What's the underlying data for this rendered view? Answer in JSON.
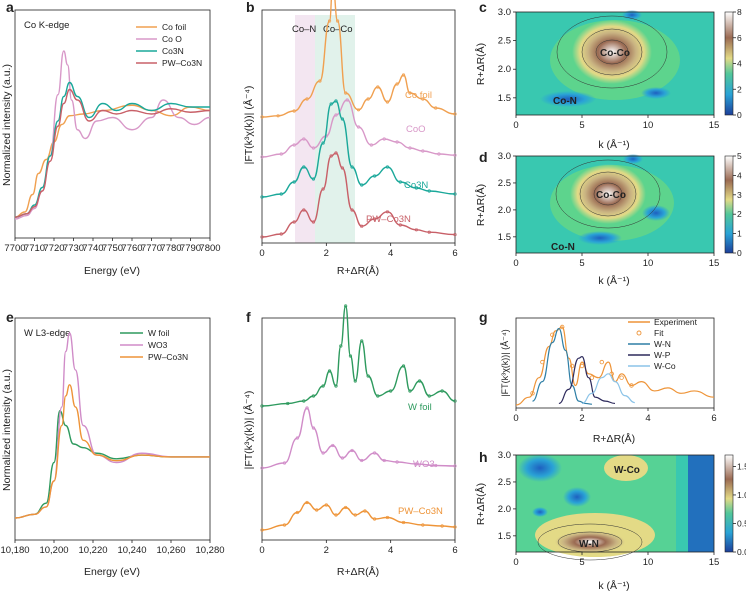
{
  "panels": {
    "a": {
      "label": "a",
      "annotation": "Co K-edge",
      "xlabel": "Energy (eV)",
      "ylabel": "Normalized intensity (a.u.)",
      "xticks": [
        "7700",
        "7710",
        "7720",
        "7730",
        "7740",
        "7750",
        "7760",
        "7770",
        "7780",
        "7790",
        "7800"
      ],
      "legend": [
        "Co foil",
        "Co O",
        "Co3N",
        "PW–Co3N"
      ]
    },
    "b": {
      "label": "b",
      "ylabel": "|FT(k³χ(k))| (Å⁻⁴)",
      "xlabel": "R+ΔR(Å)",
      "xticks": [
        "0",
        "2",
        "4",
        "6"
      ],
      "bands": [
        "Co–N",
        "Co–Co"
      ],
      "series_labels": [
        "Co foil",
        "CoO",
        "Co3N",
        "PW–Co3N"
      ]
    },
    "c": {
      "label": "c",
      "ylabel": "R+ΔR(Å)",
      "xlabel": "k (Å⁻¹)",
      "xticks": [
        "0",
        "5",
        "10",
        "15"
      ],
      "yticks": [
        "1.5",
        "2.0",
        "2.5",
        "3.0"
      ],
      "cbar_ticks": [
        "0",
        "2",
        "4",
        "6",
        "8"
      ],
      "labels": [
        "Co-Co",
        "Co-N"
      ]
    },
    "d": {
      "label": "d",
      "ylabel": "R+ΔR(Å)",
      "xlabel": "k (Å⁻¹)",
      "xticks": [
        "0",
        "5",
        "10",
        "15"
      ],
      "yticks": [
        "1.5",
        "2.0",
        "2.5",
        "3.0"
      ],
      "cbar_ticks": [
        "0",
        "1",
        "2",
        "3",
        "4",
        "5"
      ],
      "labels": [
        "Co-Co",
        "Co-N"
      ]
    },
    "e": {
      "label": "e",
      "annotation": "W L3-edge",
      "xlabel": "Energy (eV)",
      "ylabel": "Normalized intensity (a.u.)",
      "xticks": [
        "10,180",
        "10,200",
        "10,220",
        "10,240",
        "10,260",
        "10,280"
      ],
      "legend": [
        "W foil",
        "WO3",
        "PW–Co3N"
      ]
    },
    "f": {
      "label": "f",
      "ylabel": "|FT(k³χ(k))| (Å⁻⁴)",
      "xlabel": "R+ΔR(Å)",
      "xticks": [
        "0",
        "2",
        "4",
        "6"
      ],
      "series_labels": [
        "W foil",
        "WO3",
        "PW–Co3N"
      ]
    },
    "g": {
      "label": "g",
      "ylabel": "|FT(k³χ(k))| (Å⁻⁴)",
      "xlabel": "R+ΔR(Å)",
      "xticks": [
        "0",
        "2",
        "4",
        "6"
      ],
      "legend": [
        "Experiment",
        "Fit",
        "W-N",
        "W-P",
        "W-Co"
      ]
    },
    "h": {
      "label": "h",
      "ylabel": "R+ΔR(Å)",
      "xlabel": "k (Å⁻¹)",
      "xticks": [
        "0",
        "5",
        "10",
        "15"
      ],
      "yticks": [
        "1.5",
        "2.0",
        "2.5",
        "3.0"
      ],
      "cbar_ticks": [
        "0.0",
        "0.5",
        "1.0",
        "1.5"
      ],
      "labels": [
        "W-Co",
        "W-N"
      ]
    }
  },
  "colors": {
    "orange": "#f0a050",
    "pink": "#d898c8",
    "teal": "#1aa89a",
    "red": "#c86068",
    "green": "#2e9a5e",
    "wo3": "#d08cc8",
    "orange2": "#ee9438",
    "wn": "#2f7fa6",
    "wp": "#2d2a5c",
    "wco": "#8cc4e8"
  },
  "chart_data": [
    {
      "panel": "a",
      "type": "line",
      "xlim": [
        7700,
        7800
      ],
      "series": [
        {
          "name": "Co foil",
          "x": [
            7700,
            7705,
            7709,
            7712,
            7716,
            7720,
            7724,
            7728,
            7735,
            7745,
            7760,
            7770,
            7780,
            7790,
            7800
          ],
          "y": [
            0.05,
            0.08,
            0.18,
            0.3,
            0.38,
            0.48,
            0.58,
            0.63,
            0.64,
            0.66,
            0.69,
            0.66,
            0.63,
            0.68,
            0.66
          ]
        },
        {
          "name": "Co O",
          "x": [
            7700,
            7706,
            7710,
            7714,
            7718,
            7722,
            7725,
            7727,
            7729,
            7732,
            7736,
            7742,
            7750,
            7760,
            7770,
            7776,
            7784,
            7792,
            7800
          ],
          "y": [
            0.04,
            0.06,
            0.1,
            0.2,
            0.4,
            0.75,
            1.0,
            0.92,
            0.72,
            0.55,
            0.5,
            0.6,
            0.62,
            0.55,
            0.62,
            0.72,
            0.62,
            0.58,
            0.62
          ]
        },
        {
          "name": "Co3N",
          "x": [
            7700,
            7706,
            7710,
            7714,
            7718,
            7722,
            7725,
            7728,
            7732,
            7738,
            7745,
            7752,
            7760,
            7770,
            7780,
            7790,
            7800
          ],
          "y": [
            0.05,
            0.07,
            0.12,
            0.22,
            0.4,
            0.6,
            0.74,
            0.82,
            0.74,
            0.62,
            0.7,
            0.66,
            0.7,
            0.66,
            0.7,
            0.68,
            0.68
          ]
        },
        {
          "name": "PW–Co3N",
          "x": [
            7700,
            7706,
            7710,
            7714,
            7718,
            7722,
            7725,
            7728,
            7732,
            7738,
            7745,
            7752,
            7760,
            7770,
            7780,
            7790,
            7800
          ],
          "y": [
            0.05,
            0.07,
            0.11,
            0.2,
            0.37,
            0.57,
            0.7,
            0.78,
            0.72,
            0.6,
            0.66,
            0.64,
            0.66,
            0.64,
            0.67,
            0.65,
            0.66
          ]
        }
      ]
    },
    {
      "panel": "b",
      "type": "line",
      "xlim": [
        0,
        6
      ],
      "bands": [
        {
          "label": "Co–N",
          "from": 1.0,
          "to": 1.6
        },
        {
          "label": "Co–Co",
          "from": 1.6,
          "to": 2.9
        }
      ],
      "series": [
        {
          "name": "Co foil",
          "offset": 3,
          "x": [
            0,
            0.5,
            1,
            1.4,
            1.8,
            2.1,
            2.2,
            2.35,
            2.6,
            3,
            3.3,
            3.6,
            3.9,
            4.2,
            4.4,
            4.6,
            5,
            5.4,
            6
          ],
          "y": [
            0,
            0.02,
            0.1,
            0.3,
            0.6,
            1.6,
            2.2,
            1.6,
            0.4,
            0.12,
            0.3,
            0.5,
            0.25,
            0.55,
            0.7,
            0.4,
            0.3,
            0.15,
            0.05
          ]
        },
        {
          "name": "CoO",
          "offset": 2,
          "x": [
            0,
            0.6,
            1,
            1.3,
            1.6,
            2.0,
            2.3,
            2.65,
            3.0,
            3.4,
            3.8,
            4.2,
            4.6,
            5,
            5.5,
            6
          ],
          "y": [
            0,
            0.05,
            0.2,
            0.3,
            0.15,
            0.35,
            0.7,
            0.95,
            0.5,
            0.2,
            0.3,
            0.25,
            0.15,
            0.1,
            0.05,
            0.03
          ]
        },
        {
          "name": "Co3N",
          "offset": 1,
          "x": [
            0,
            0.6,
            1.0,
            1.3,
            1.6,
            1.9,
            2.15,
            2.3,
            2.5,
            2.8,
            3.1,
            3.5,
            3.9,
            4.3,
            4.8,
            5.2,
            6
          ],
          "y": [
            0,
            0.05,
            0.25,
            0.5,
            0.3,
            0.9,
            1.55,
            1.6,
            1.3,
            0.5,
            0.2,
            0.35,
            0.5,
            0.25,
            0.15,
            0.1,
            0.05
          ]
        },
        {
          "name": "PW–Co3N",
          "offset": 0,
          "x": [
            0,
            0.6,
            1.0,
            1.3,
            1.6,
            1.9,
            2.15,
            2.3,
            2.5,
            2.8,
            3.1,
            3.5,
            3.9,
            4.3,
            4.8,
            5.2,
            6
          ],
          "y": [
            0,
            0.05,
            0.25,
            0.45,
            0.25,
            0.8,
            1.35,
            1.4,
            1.15,
            0.45,
            0.18,
            0.3,
            0.42,
            0.2,
            0.12,
            0.08,
            0.04
          ]
        }
      ]
    },
    {
      "panel": "c",
      "type": "heatmap",
      "xlim": [
        0,
        15
      ],
      "ylim": [
        1.2,
        3.0
      ],
      "zlim": [
        0,
        8
      ]
    },
    {
      "panel": "d",
      "type": "heatmap",
      "xlim": [
        0,
        15
      ],
      "ylim": [
        1.2,
        3.0
      ],
      "zlim": [
        0,
        5
      ]
    },
    {
      "panel": "e",
      "type": "line",
      "xlim": [
        10180,
        10280
      ],
      "series": [
        {
          "name": "W foil",
          "x": [
            10180,
            10190,
            10196,
            10200,
            10203,
            10206,
            10210,
            10215,
            10222,
            10232,
            10245,
            10260,
            10270,
            10280
          ],
          "y": [
            0.0,
            0.02,
            0.08,
            0.3,
            0.58,
            0.5,
            0.4,
            0.38,
            0.35,
            0.32,
            0.34,
            0.33,
            0.33,
            0.33
          ]
        },
        {
          "name": "WO3",
          "x": [
            10180,
            10190,
            10196,
            10200,
            10204,
            10206,
            10208,
            10211,
            10215,
            10222,
            10232,
            10245,
            10260,
            10270,
            10280
          ],
          "y": [
            0.0,
            0.02,
            0.06,
            0.2,
            0.6,
            0.9,
            1.0,
            0.8,
            0.5,
            0.34,
            0.3,
            0.35,
            0.33,
            0.33,
            0.33
          ]
        },
        {
          "name": "PW–Co3N",
          "x": [
            10180,
            10190,
            10196,
            10200,
            10204,
            10206,
            10208,
            10211,
            10215,
            10222,
            10232,
            10245,
            10260,
            10270,
            10280
          ],
          "y": [
            0.0,
            0.02,
            0.06,
            0.2,
            0.5,
            0.66,
            0.72,
            0.6,
            0.42,
            0.34,
            0.31,
            0.34,
            0.33,
            0.33,
            0.33
          ]
        }
      ]
    },
    {
      "panel": "f",
      "type": "line",
      "xlim": [
        0,
        6
      ],
      "series": [
        {
          "name": "W foil",
          "offset": 2,
          "x": [
            0,
            0.8,
            1.3,
            1.6,
            1.9,
            2.1,
            2.3,
            2.45,
            2.6,
            2.75,
            2.9,
            3.1,
            3.3,
            3.6,
            4.0,
            4.4,
            4.6,
            4.9,
            5.2,
            5.6,
            6
          ],
          "y": [
            0,
            0.05,
            0.1,
            0.2,
            0.4,
            0.7,
            0.4,
            1.2,
            2.0,
            1.0,
            0.5,
            1.3,
            0.6,
            0.2,
            0.3,
            0.8,
            0.3,
            0.5,
            0.2,
            0.3,
            0.1
          ]
        },
        {
          "name": "WO3",
          "offset": 1,
          "x": [
            0,
            0.7,
            1.1,
            1.4,
            1.6,
            1.9,
            2.2,
            2.5,
            2.8,
            3.1,
            3.5,
            3.8,
            4.2,
            4.8,
            5.4,
            6
          ],
          "y": [
            0,
            0.1,
            0.6,
            1.2,
            0.8,
            0.3,
            0.45,
            0.2,
            0.35,
            0.15,
            0.3,
            0.15,
            0.12,
            0.08,
            0.05,
            0.04
          ]
        },
        {
          "name": "PW–Co3N",
          "offset": 0,
          "x": [
            0,
            0.7,
            1.1,
            1.4,
            1.7,
            2.0,
            2.3,
            2.6,
            2.9,
            3.2,
            3.5,
            3.9,
            4.4,
            5.0,
            5.6,
            6
          ],
          "y": [
            0,
            0.1,
            0.35,
            0.55,
            0.4,
            0.5,
            0.3,
            0.45,
            0.3,
            0.38,
            0.22,
            0.25,
            0.15,
            0.1,
            0.08,
            0.06
          ]
        }
      ]
    },
    {
      "panel": "g",
      "type": "line",
      "xlim": [
        0,
        6
      ],
      "series": [
        {
          "name": "Experiment",
          "x": [
            0,
            0.4,
            0.7,
            1.0,
            1.2,
            1.4,
            1.6,
            1.8,
            2.0,
            2.2,
            2.5,
            2.8,
            3.0,
            3.2,
            3.5,
            3.8,
            4.2,
            4.6,
            5.0,
            5.4,
            6
          ],
          "y": [
            0,
            0.1,
            0.35,
            0.75,
            0.95,
            1.0,
            0.6,
            0.25,
            0.55,
            0.4,
            0.35,
            0.55,
            0.3,
            0.4,
            0.25,
            0.3,
            0.18,
            0.22,
            0.15,
            0.18,
            0.1
          ]
        },
        {
          "name": "Fit",
          "x": [
            0.5,
            0.8,
            1.1,
            1.4,
            1.7,
            2.0,
            2.3,
            2.6,
            2.9,
            3.2,
            3.5
          ],
          "y": [
            0.15,
            0.55,
            0.9,
            1.0,
            0.5,
            0.5,
            0.35,
            0.55,
            0.4,
            0.35,
            0.25
          ]
        },
        {
          "name": "W-N",
          "x": [
            0.5,
            0.8,
            1.1,
            1.3,
            1.5,
            1.7,
            1.9,
            2.1,
            2.3
          ],
          "y": [
            0.05,
            0.3,
            0.8,
            0.98,
            0.7,
            0.25,
            0.05,
            0.02,
            0.01
          ]
        },
        {
          "name": "W-P",
          "x": [
            1.3,
            1.6,
            1.9,
            2.0,
            2.2,
            2.4,
            2.7,
            3.0
          ],
          "y": [
            0.02,
            0.2,
            0.6,
            0.62,
            0.35,
            0.1,
            0.05,
            0.02
          ]
        },
        {
          "name": "W-Co",
          "x": [
            2.0,
            2.3,
            2.6,
            2.8,
            3.0,
            3.3,
            3.6
          ],
          "y": [
            0.02,
            0.15,
            0.35,
            0.4,
            0.3,
            0.12,
            0.03
          ]
        }
      ]
    },
    {
      "panel": "h",
      "type": "heatmap",
      "xlim": [
        0,
        15
      ],
      "ylim": [
        1.2,
        3.0
      ],
      "zlim": [
        0,
        1.7
      ]
    }
  ]
}
